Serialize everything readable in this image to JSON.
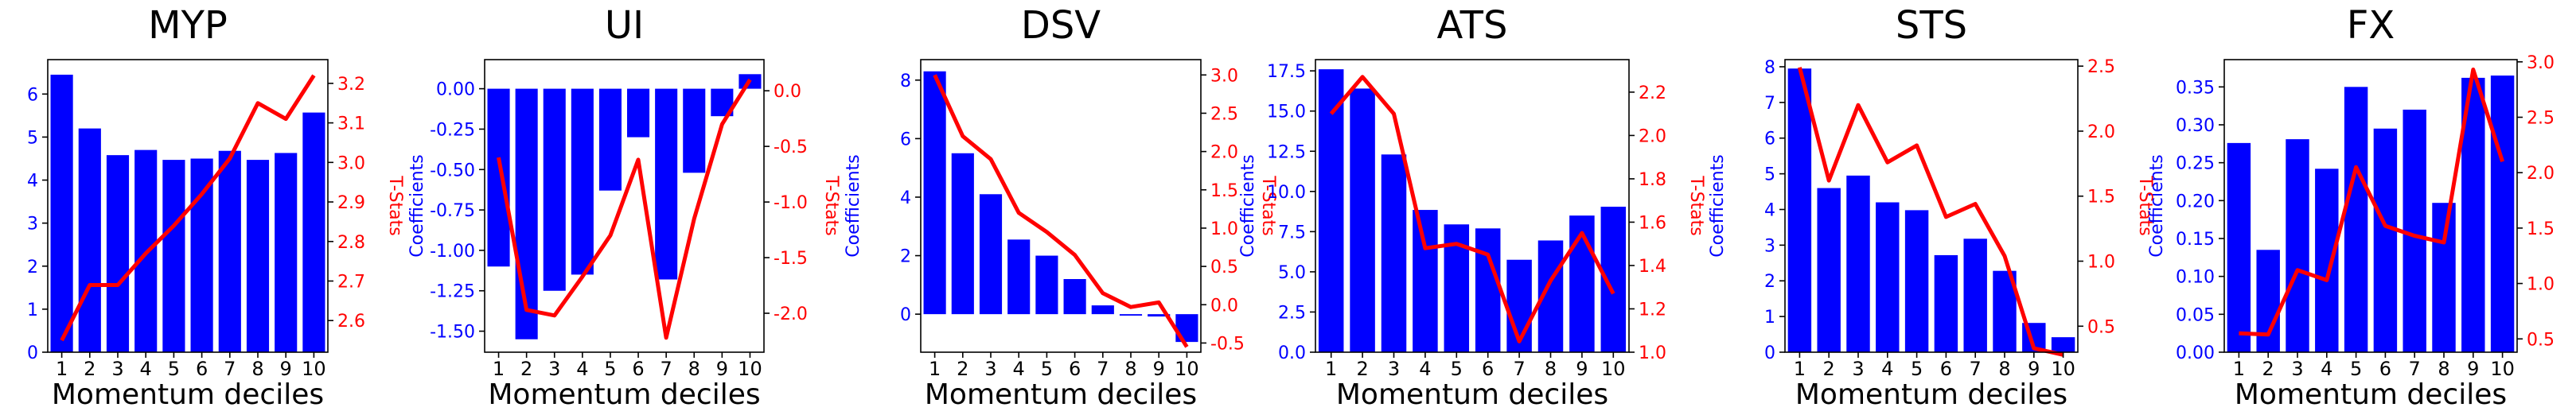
{
  "colors": {
    "bar": "#0000ff",
    "line": "#ff0000",
    "axis": "#000000",
    "left_axis_text": "#0000ff",
    "right_axis_text": "#ff0000"
  },
  "chart_data": [
    {
      "type": "bar+line",
      "title": "MYP",
      "xlabel": "Momentum deciles",
      "ylabel_left": "Coefficients",
      "ylabel_right": "T-Stats",
      "categories": [
        "1",
        "2",
        "3",
        "4",
        "5",
        "6",
        "7",
        "8",
        "9",
        "10"
      ],
      "ylim_left": [
        0,
        6.8
      ],
      "ylim_right": [
        2.52,
        3.26
      ],
      "yticks_left": [
        "0",
        "1",
        "2",
        "3",
        "4",
        "5",
        "6"
      ],
      "yticks_right": [
        "2.6",
        "2.7",
        "2.8",
        "2.9",
        "3.0",
        "3.1",
        "3.2"
      ],
      "series": [
        {
          "axis": "left",
          "kind": "bar",
          "values": [
            6.45,
            5.2,
            4.58,
            4.7,
            4.47,
            4.5,
            4.68,
            4.47,
            4.63,
            5.57
          ]
        },
        {
          "axis": "right",
          "kind": "line",
          "values": [
            2.55,
            2.69,
            2.69,
            2.77,
            2.84,
            2.92,
            3.01,
            3.15,
            3.11,
            3.22
          ]
        }
      ]
    },
    {
      "type": "bar+line",
      "title": "UI",
      "xlabel": "Momentum deciles",
      "ylabel_left": "Coefficients",
      "ylabel_right": "T-Stats",
      "categories": [
        "1",
        "2",
        "3",
        "4",
        "5",
        "6",
        "7",
        "8",
        "9",
        "10"
      ],
      "ylim_left": [
        -1.63,
        0.18
      ],
      "ylim_right": [
        -2.35,
        0.28
      ],
      "yticks_left": [
        "0.00",
        "-0.25",
        "-0.50",
        "-0.75",
        "-1.00",
        "-1.25",
        "-1.50"
      ],
      "yticks_right": [
        "0.0",
        "-0.5",
        "-1.0",
        "-1.5",
        "-2.0"
      ],
      "series": [
        {
          "axis": "left",
          "kind": "bar",
          "values": [
            -1.1,
            -1.55,
            -1.25,
            -1.15,
            -0.63,
            -0.3,
            -1.18,
            -0.52,
            -0.17,
            0.09
          ]
        },
        {
          "axis": "right",
          "kind": "line",
          "values": [
            -0.6,
            -1.97,
            -2.02,
            -1.67,
            -1.3,
            -0.62,
            -2.22,
            -1.15,
            -0.3,
            0.1
          ]
        }
      ]
    },
    {
      "type": "bar+line",
      "title": "DSV",
      "xlabel": "Momentum deciles",
      "ylabel_left": "Coefficients",
      "ylabel_right": "T-Stats",
      "categories": [
        "1",
        "2",
        "3",
        "4",
        "5",
        "6",
        "7",
        "8",
        "9",
        "10"
      ],
      "ylim_left": [
        -1.3,
        8.7
      ],
      "ylim_right": [
        -0.62,
        3.2
      ],
      "yticks_left": [
        "0",
        "2",
        "4",
        "6",
        "8"
      ],
      "yticks_right": [
        "-0.5",
        "0.0",
        "0.5",
        "1.0",
        "1.5",
        "2.0",
        "2.5",
        "3.0"
      ],
      "series": [
        {
          "axis": "left",
          "kind": "bar",
          "values": [
            8.3,
            5.5,
            4.1,
            2.55,
            2.0,
            1.2,
            0.3,
            -0.05,
            -0.08,
            -0.95
          ]
        },
        {
          "axis": "right",
          "kind": "line",
          "values": [
            3.0,
            2.2,
            1.9,
            1.2,
            0.95,
            0.65,
            0.15,
            -0.03,
            0.03,
            -0.55
          ]
        }
      ]
    },
    {
      "type": "bar+line",
      "title": "ATS",
      "xlabel": "Momentum deciles",
      "ylabel_left": "Coefficients",
      "ylabel_right": "T-Stats",
      "categories": [
        "1",
        "2",
        "3",
        "4",
        "5",
        "6",
        "7",
        "8",
        "9",
        "10"
      ],
      "ylim_left": [
        0,
        18.2
      ],
      "ylim_right": [
        1.0,
        2.35
      ],
      "yticks_left": [
        "0.0",
        "2.5",
        "5.0",
        "7.5",
        "10.0",
        "12.5",
        "15.0",
        "17.5"
      ],
      "yticks_right": [
        "1.0",
        "1.2",
        "1.4",
        "1.6",
        "1.8",
        "2.0",
        "2.2"
      ],
      "series": [
        {
          "axis": "left",
          "kind": "bar",
          "values": [
            17.6,
            16.4,
            12.3,
            8.85,
            7.95,
            7.7,
            5.75,
            6.95,
            8.5,
            9.05
          ]
        },
        {
          "axis": "right",
          "kind": "line",
          "values": [
            2.1,
            2.27,
            2.1,
            1.48,
            1.5,
            1.45,
            1.05,
            1.33,
            1.55,
            1.27
          ]
        }
      ]
    },
    {
      "type": "bar+line",
      "title": "STS",
      "xlabel": "Momentum deciles",
      "ylabel_left": "Coefficients",
      "ylabel_right": "T-Stats",
      "categories": [
        "1",
        "2",
        "3",
        "4",
        "5",
        "6",
        "7",
        "8",
        "9",
        "10"
      ],
      "ylim_left": [
        0,
        8.2
      ],
      "ylim_right": [
        0.3,
        2.55
      ],
      "yticks_left": [
        "0",
        "1",
        "2",
        "3",
        "4",
        "5",
        "6",
        "7",
        "8"
      ],
      "yticks_right": [
        "0.5",
        "1.0",
        "1.5",
        "2.0",
        "2.5"
      ],
      "series": [
        {
          "axis": "left",
          "kind": "bar",
          "values": [
            7.95,
            4.6,
            4.95,
            4.2,
            3.98,
            2.72,
            3.18,
            2.28,
            0.82,
            0.42
          ]
        },
        {
          "axis": "right",
          "kind": "line",
          "values": [
            2.49,
            1.62,
            2.2,
            1.76,
            1.89,
            1.34,
            1.44,
            1.04,
            0.33,
            0.28
          ]
        }
      ]
    },
    {
      "type": "bar+line",
      "title": "FX",
      "xlabel": "Momentum deciles",
      "ylabel_left": "Coefficients",
      "ylabel_right": "T-Stats",
      "categories": [
        "1",
        "2",
        "3",
        "4",
        "5",
        "6",
        "7",
        "8",
        "9",
        "10"
      ],
      "ylim_left": [
        0,
        0.386
      ],
      "ylim_right": [
        0.38,
        3.02
      ],
      "yticks_left": [
        "0.00",
        "0.05",
        "0.10",
        "0.15",
        "0.20",
        "0.25",
        "0.30",
        "0.35"
      ],
      "yticks_right": [
        "0.5",
        "1.0",
        "1.5",
        "2.0",
        "2.5",
        "3.0"
      ],
      "series": [
        {
          "axis": "left",
          "kind": "bar",
          "values": [
            0.276,
            0.135,
            0.281,
            0.242,
            0.35,
            0.295,
            0.32,
            0.197,
            0.362,
            0.365
          ]
        },
        {
          "axis": "right",
          "kind": "line",
          "values": [
            0.55,
            0.54,
            1.12,
            1.03,
            2.05,
            1.52,
            1.43,
            1.37,
            2.93,
            2.1
          ]
        }
      ]
    }
  ]
}
